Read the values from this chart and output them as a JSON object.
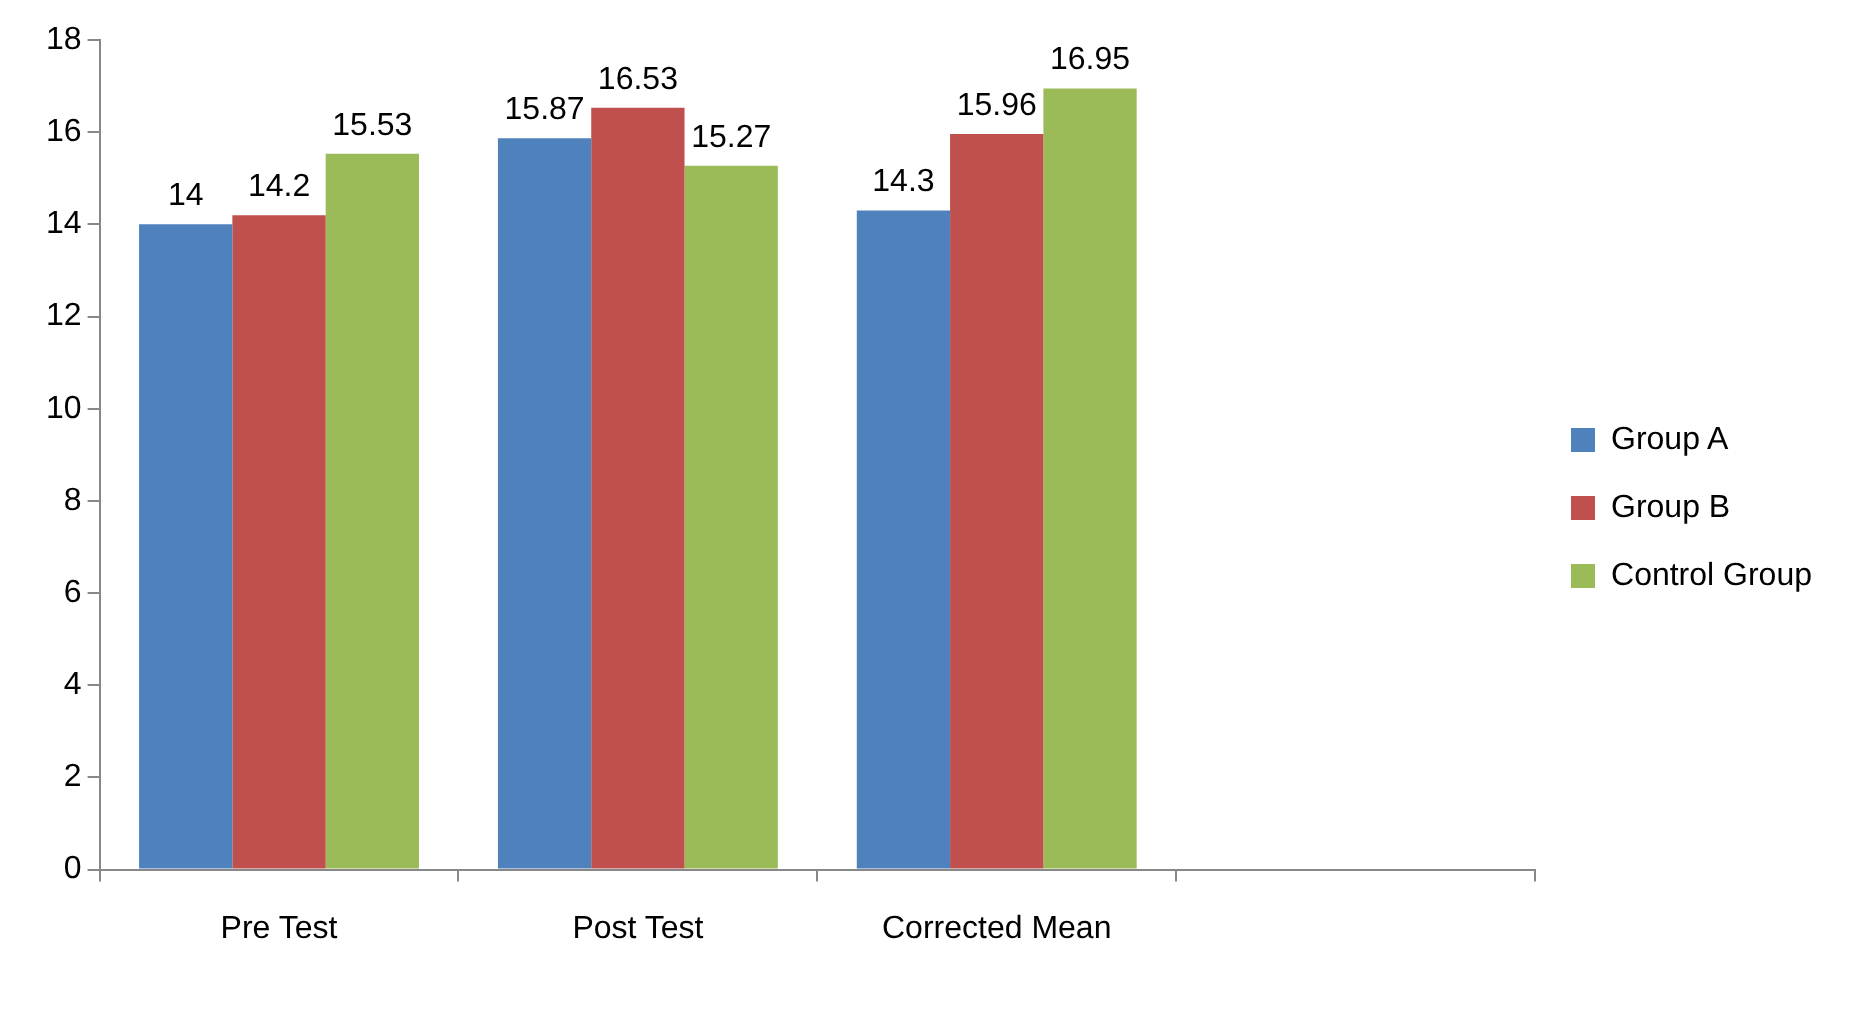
{
  "chart_data": {
    "type": "bar",
    "categories": [
      "Pre Test",
      "Post Test",
      "Corrected Mean",
      null
    ],
    "series": [
      {
        "name": "Group A",
        "color": "#4f81bd",
        "values": [
          14,
          15.87,
          14.3,
          null
        ]
      },
      {
        "name": "Group B",
        "color": "#c0504d",
        "values": [
          14.2,
          16.53,
          15.96,
          null
        ]
      },
      {
        "name": "Control Group",
        "color": "#9bbb59",
        "values": [
          15.53,
          15.27,
          16.95,
          null
        ]
      }
    ],
    "ylim": [
      0,
      18
    ],
    "yticks": [
      0,
      2,
      4,
      6,
      8,
      10,
      12,
      14,
      16,
      18
    ],
    "grid": false,
    "legend": "right",
    "data_labels": true
  }
}
